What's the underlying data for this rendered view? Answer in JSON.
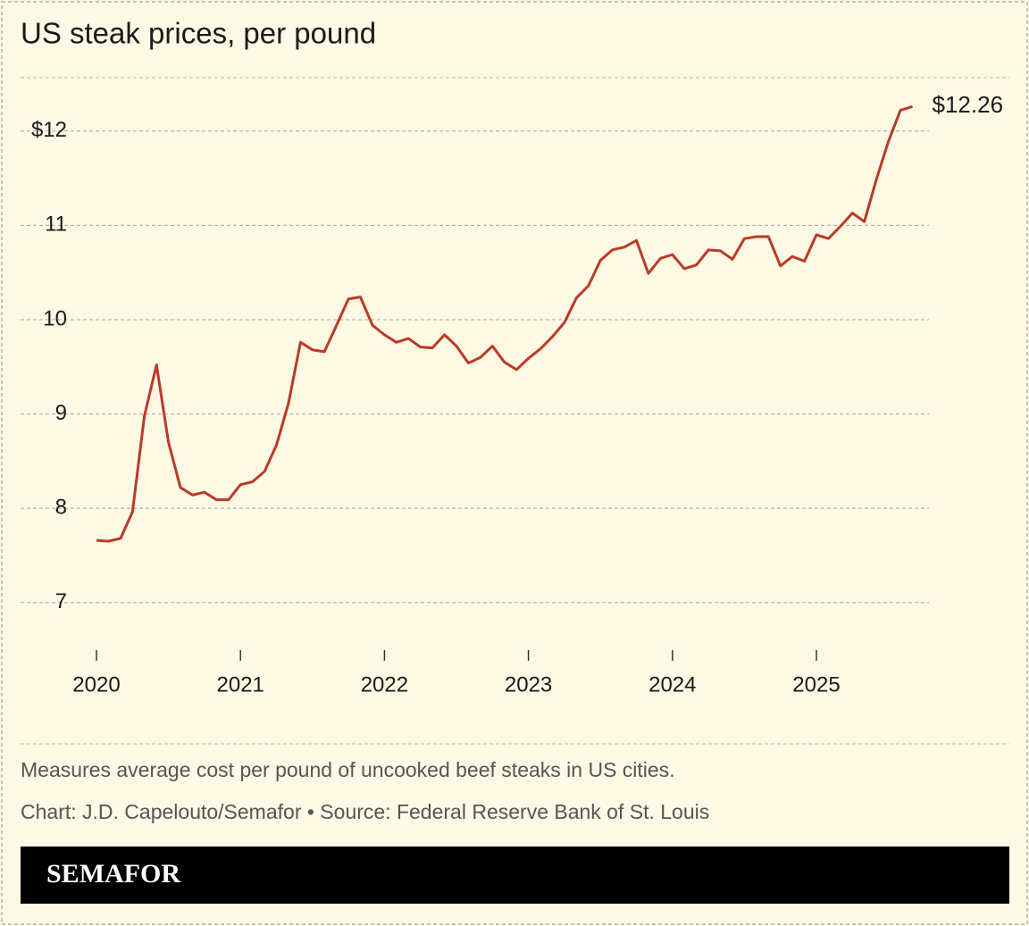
{
  "chart_data": {
    "type": "line",
    "title": "US steak prices, per pound",
    "note": "Measures average cost per pound of uncooked beef steaks in US cities.",
    "source": "Chart: J.D. Capelouto/Semafor • Source: Federal Reserve Bank of St. Louis",
    "brand": "SEMAFOR",
    "x": [
      2020,
      2020.083,
      2020.167,
      2020.25,
      2020.333,
      2020.417,
      2020.5,
      2020.583,
      2020.667,
      2020.75,
      2020.833,
      2020.917,
      2021,
      2021.083,
      2021.167,
      2021.25,
      2021.333,
      2021.417,
      2021.5,
      2021.583,
      2021.667,
      2021.75,
      2021.833,
      2021.917,
      2022,
      2022.083,
      2022.167,
      2022.25,
      2022.333,
      2022.417,
      2022.5,
      2022.583,
      2022.667,
      2022.75,
      2022.833,
      2022.917,
      2023,
      2023.083,
      2023.167,
      2023.25,
      2023.333,
      2023.417,
      2023.5,
      2023.583,
      2023.667,
      2023.75,
      2023.833,
      2023.917,
      2024,
      2024.083,
      2024.167,
      2024.25,
      2024.333,
      2024.417,
      2024.5,
      2024.583,
      2024.667,
      2024.75,
      2024.833,
      2024.917,
      2025,
      2025.083,
      2025.167,
      2025.25,
      2025.333,
      2025.417,
      2025.5,
      2025.583,
      2025.667
    ],
    "series": [
      {
        "name": "Steak price",
        "color": "#bb3a26",
        "values": [
          7.66,
          7.65,
          7.68,
          7.96,
          8.98,
          9.52,
          8.7,
          8.22,
          8.14,
          8.17,
          8.09,
          8.09,
          8.25,
          8.28,
          8.39,
          8.67,
          9.11,
          9.76,
          9.68,
          9.66,
          9.94,
          10.22,
          10.24,
          9.94,
          9.84,
          9.76,
          9.8,
          9.71,
          9.7,
          9.84,
          9.72,
          9.54,
          9.6,
          9.72,
          9.55,
          9.47,
          9.59,
          9.69,
          9.82,
          9.97,
          10.23,
          10.36,
          10.63,
          10.74,
          10.77,
          10.84,
          10.49,
          10.65,
          10.69,
          10.54,
          10.58,
          10.74,
          10.73,
          10.64,
          10.86,
          10.88,
          10.88,
          10.57,
          10.67,
          10.62,
          10.9,
          10.86,
          10.99,
          11.13,
          11.04,
          11.49,
          11.89,
          12.22,
          12.26
        ],
        "value_labels": [
          null,
          null,
          null,
          null,
          null,
          null,
          null,
          null,
          null,
          null,
          null,
          null,
          null,
          null,
          null,
          null,
          null,
          null,
          null,
          null,
          null,
          null,
          null,
          null,
          null,
          null,
          null,
          null,
          null,
          null,
          null,
          null,
          null,
          null,
          null,
          null,
          null,
          null,
          null,
          null,
          null,
          null,
          null,
          null,
          null,
          null,
          null,
          null,
          null,
          null,
          null,
          null,
          null,
          null,
          null,
          null,
          null,
          null,
          null,
          null,
          null,
          null,
          null,
          null,
          null,
          null,
          null,
          null,
          "$12.26"
        ]
      }
    ],
    "xlim": [
      2019.5,
      2025.75
    ],
    "xticks": [
      2020,
      2021,
      2022,
      2023,
      2024,
      2025
    ],
    "ylim": [
      6.6,
      12.5
    ],
    "yticks": [
      {
        "value": 12,
        "label": "$12"
      },
      11,
      10,
      9,
      8,
      7
    ],
    "grid": true
  }
}
